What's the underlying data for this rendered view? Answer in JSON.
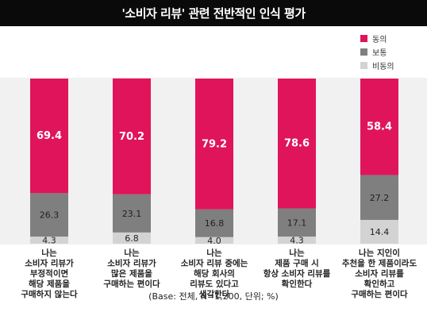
{
  "title": "'소비자 리뷰' 관련 전반적인 인식 평가",
  "footnote": "(Base: 전체, N=1,200, 단위; %)",
  "colors": {
    "agree": "#e0145a",
    "neutral": "#7f7f7f",
    "disagree": "#d3d3d3"
  },
  "chart_data": {
    "type": "bar",
    "stacked": true,
    "categories": [
      "나는\n소비자 리뷰가\n부정적이면\n해당 제품을\n구매하지 않는다",
      "나는\n소비자 리뷰가\n많은 제품을\n구매하는 편이다",
      "나는\n소비자 리뷰 중에는\n해당 회사의\n리뷰도 있다고\n생각한다",
      "나는\n제품 구매 시\n항상 소비자 리뷰를\n확인한다",
      "나는 지인이\n추천을 한 제품이라도\n소비자 리뷰를\n확인하고\n구매하는 편이다"
    ],
    "series": [
      {
        "name": "비동의",
        "values": [
          4.3,
          6.8,
          4.0,
          4.3,
          14.4
        ]
      },
      {
        "name": "보통",
        "values": [
          26.3,
          23.1,
          16.8,
          17.1,
          27.2
        ]
      },
      {
        "name": "동의",
        "values": [
          69.4,
          70.2,
          79.2,
          78.6,
          58.4
        ]
      }
    ],
    "legend_order": [
      "동의",
      "보통",
      "비동의"
    ],
    "ylim": [
      0,
      100
    ],
    "legend_position": "top-right",
    "grid": false
  }
}
